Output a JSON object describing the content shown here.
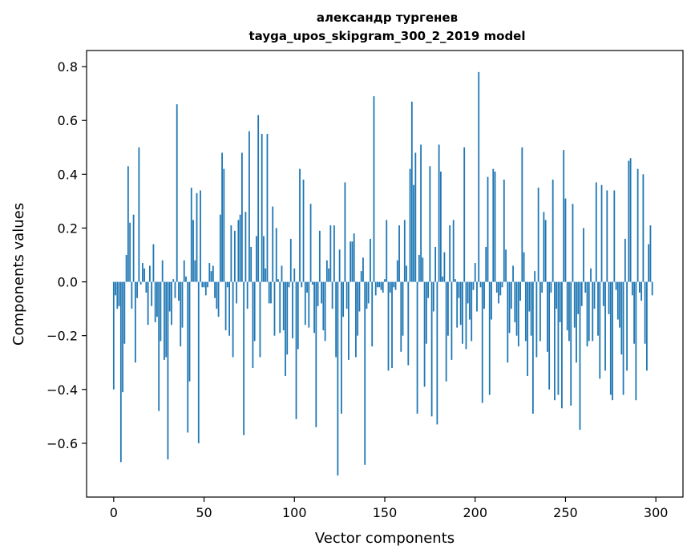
{
  "chart_data": {
    "type": "bar",
    "title_line1": "александр тургенев",
    "title_line2": "tayga_upos_skipgram_300_2_2019 model",
    "xlabel": "Vector components",
    "ylabel": "Components values",
    "xlim": [
      -15,
      315
    ],
    "ylim": [
      -0.8,
      0.86
    ],
    "xticks": [
      0,
      50,
      100,
      150,
      200,
      250,
      300
    ],
    "yticks": [
      -0.6,
      -0.4,
      -0.2,
      0.0,
      0.2,
      0.4,
      0.6,
      0.8
    ],
    "ytick_labels": [
      "−0.6",
      "−0.4",
      "−0.2",
      "0.0",
      "0.2",
      "0.4",
      "0.6",
      "0.8"
    ],
    "bar_color": "#1f77b4",
    "grid": false,
    "values": [
      -0.4,
      -0.05,
      -0.1,
      -0.09,
      -0.67,
      -0.41,
      -0.23,
      0.1,
      0.43,
      0.22,
      -0.1,
      0.25,
      -0.3,
      -0.06,
      0.5,
      -0.01,
      0.07,
      0.05,
      -0.04,
      -0.16,
      0.06,
      -0.09,
      0.14,
      -0.15,
      -0.13,
      -0.48,
      -0.22,
      0.08,
      -0.29,
      -0.28,
      -0.66,
      -0.11,
      -0.16,
      0.01,
      -0.06,
      0.66,
      -0.07,
      -0.24,
      -0.17,
      0.08,
      0.02,
      -0.56,
      -0.37,
      0.35,
      0.23,
      0.08,
      0.33,
      -0.6,
      0.34,
      -0.02,
      -0.02,
      -0.05,
      -0.02,
      0.07,
      0.04,
      0.06,
      -0.06,
      -0.1,
      -0.13,
      0.25,
      0.48,
      0.42,
      -0.18,
      -0.02,
      -0.2,
      0.21,
      -0.28,
      0.19,
      -0.08,
      0.23,
      0.25,
      0.48,
      -0.57,
      0.26,
      -0.1,
      0.56,
      0.13,
      -0.32,
      -0.22,
      0.17,
      0.62,
      -0.28,
      0.55,
      0.17,
      0.05,
      0.55,
      -0.08,
      -0.08,
      0.28,
      -0.2,
      0.2,
      0.01,
      -0.19,
      0.06,
      -0.18,
      -0.35,
      -0.27,
      -0.02,
      0.16,
      -0.21,
      0.05,
      -0.51,
      -0.25,
      0.42,
      -0.02,
      0.38,
      -0.16,
      -0.04,
      -0.17,
      0.29,
      -0.01,
      -0.19,
      -0.54,
      -0.09,
      0.19,
      -0.08,
      -0.18,
      -0.22,
      0.08,
      0.05,
      0.21,
      -0.1,
      0.21,
      -0.28,
      -0.72,
      0.12,
      -0.49,
      -0.13,
      0.37,
      -0.1,
      -0.29,
      0.15,
      0.15,
      0.18,
      -0.28,
      -0.2,
      -0.11,
      0.04,
      0.09,
      -0.68,
      -0.1,
      -0.08,
      0.16,
      -0.24,
      0.69,
      -0.05,
      -0.02,
      -0.02,
      -0.03,
      -0.04,
      0.01,
      0.23,
      -0.33,
      -0.04,
      -0.32,
      -0.02,
      -0.03,
      0.08,
      0.21,
      -0.26,
      -0.2,
      0.23,
      0.06,
      -0.31,
      0.42,
      0.67,
      0.36,
      0.48,
      -0.49,
      0.1,
      0.51,
      0.09,
      -0.39,
      -0.23,
      -0.06,
      0.43,
      -0.5,
      -0.11,
      0.13,
      -0.53,
      0.51,
      0.41,
      0.02,
      0.11,
      -0.37,
      -0.2,
      0.21,
      -0.29,
      0.23,
      0.01,
      -0.17,
      -0.06,
      -0.16,
      -0.23,
      0.5,
      -0.25,
      -0.08,
      -0.14,
      -0.22,
      -0.03,
      0.07,
      -0.11,
      0.78,
      -0.02,
      -0.45,
      -0.1,
      0.13,
      0.39,
      -0.42,
      -0.14,
      0.42,
      0.41,
      -0.04,
      -0.08,
      -0.05,
      -0.02,
      0.38,
      0.12,
      -0.3,
      -0.19,
      -0.1,
      0.06,
      -0.15,
      -0.2,
      -0.24,
      -0.07,
      0.5,
      0.11,
      -0.22,
      -0.35,
      -0.11,
      -0.2,
      -0.49,
      0.04,
      -0.28,
      0.35,
      -0.22,
      -0.04,
      0.26,
      0.23,
      -0.26,
      -0.4,
      -0.04,
      0.38,
      -0.44,
      -0.1,
      -0.42,
      -0.15,
      -0.47,
      0.49,
      0.31,
      -0.18,
      -0.22,
      -0.46,
      0.29,
      -0.17,
      -0.3,
      -0.12,
      -0.55,
      -0.09,
      0.2,
      -0.04,
      -0.24,
      -0.22,
      0.05,
      -0.22,
      -0.1,
      0.37,
      -0.2,
      -0.36,
      0.36,
      -0.09,
      -0.33,
      0.34,
      -0.12,
      -0.42,
      -0.44,
      0.34,
      -0.03,
      -0.14,
      -0.17,
      -0.27,
      -0.42,
      0.16,
      -0.33,
      0.45,
      0.46,
      -0.05,
      -0.23,
      -0.44,
      0.42,
      -0.04,
      -0.07,
      0.4,
      -0.23,
      -0.33,
      0.14,
      0.21,
      -0.05
    ]
  }
}
